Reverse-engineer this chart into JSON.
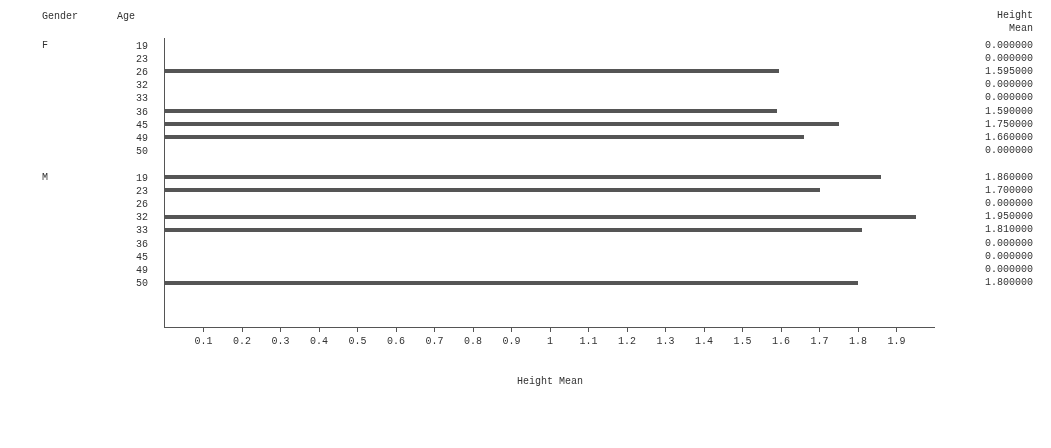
{
  "chart_data": [
    {
      "type": "bar",
      "orientation": "horizontal",
      "ylabel": "F",
      "annotations": [
        "Gender",
        "Age",
        "Height Mean"
      ],
      "categories": [
        "19",
        "23",
        "26",
        "32",
        "33",
        "36",
        "45",
        "49",
        "50"
      ],
      "values": [
        0,
        0,
        1.595,
        0,
        0,
        1.59,
        1.75,
        1.66,
        0
      ],
      "value_labels": [
        "0.000000",
        "0.000000",
        "1.595000",
        "0.000000",
        "0.000000",
        "1.590000",
        "1.750000",
        "1.660000",
        "0.000000"
      ],
      "color": "#555555",
      "tick_labels": "y"
    },
    {
      "type": "bar",
      "orientation": "horizontal",
      "ylabel": "M",
      "xlabel": "Height Mean",
      "categories": [
        "19",
        "23",
        "26",
        "32",
        "33",
        "36",
        "45",
        "49",
        "50"
      ],
      "values": [
        1.86,
        1.7,
        0,
        1.95,
        1.81,
        0,
        0,
        0,
        1.8
      ],
      "value_labels": [
        "1.860000",
        "1.700000",
        "0.000000",
        "1.950000",
        "1.810000",
        "0.000000",
        "0.000000",
        "0.000000",
        "1.800000"
      ],
      "color": "#555555",
      "xlim": [
        0,
        2
      ],
      "xticks": [
        0.1,
        0.2,
        0.3,
        0.4,
        0.5,
        0.6,
        0.7,
        0.8,
        0.9,
        1,
        1.1,
        1.2,
        1.3,
        1.4,
        1.5,
        1.6,
        1.7,
        1.8,
        1.9
      ]
    }
  ]
}
